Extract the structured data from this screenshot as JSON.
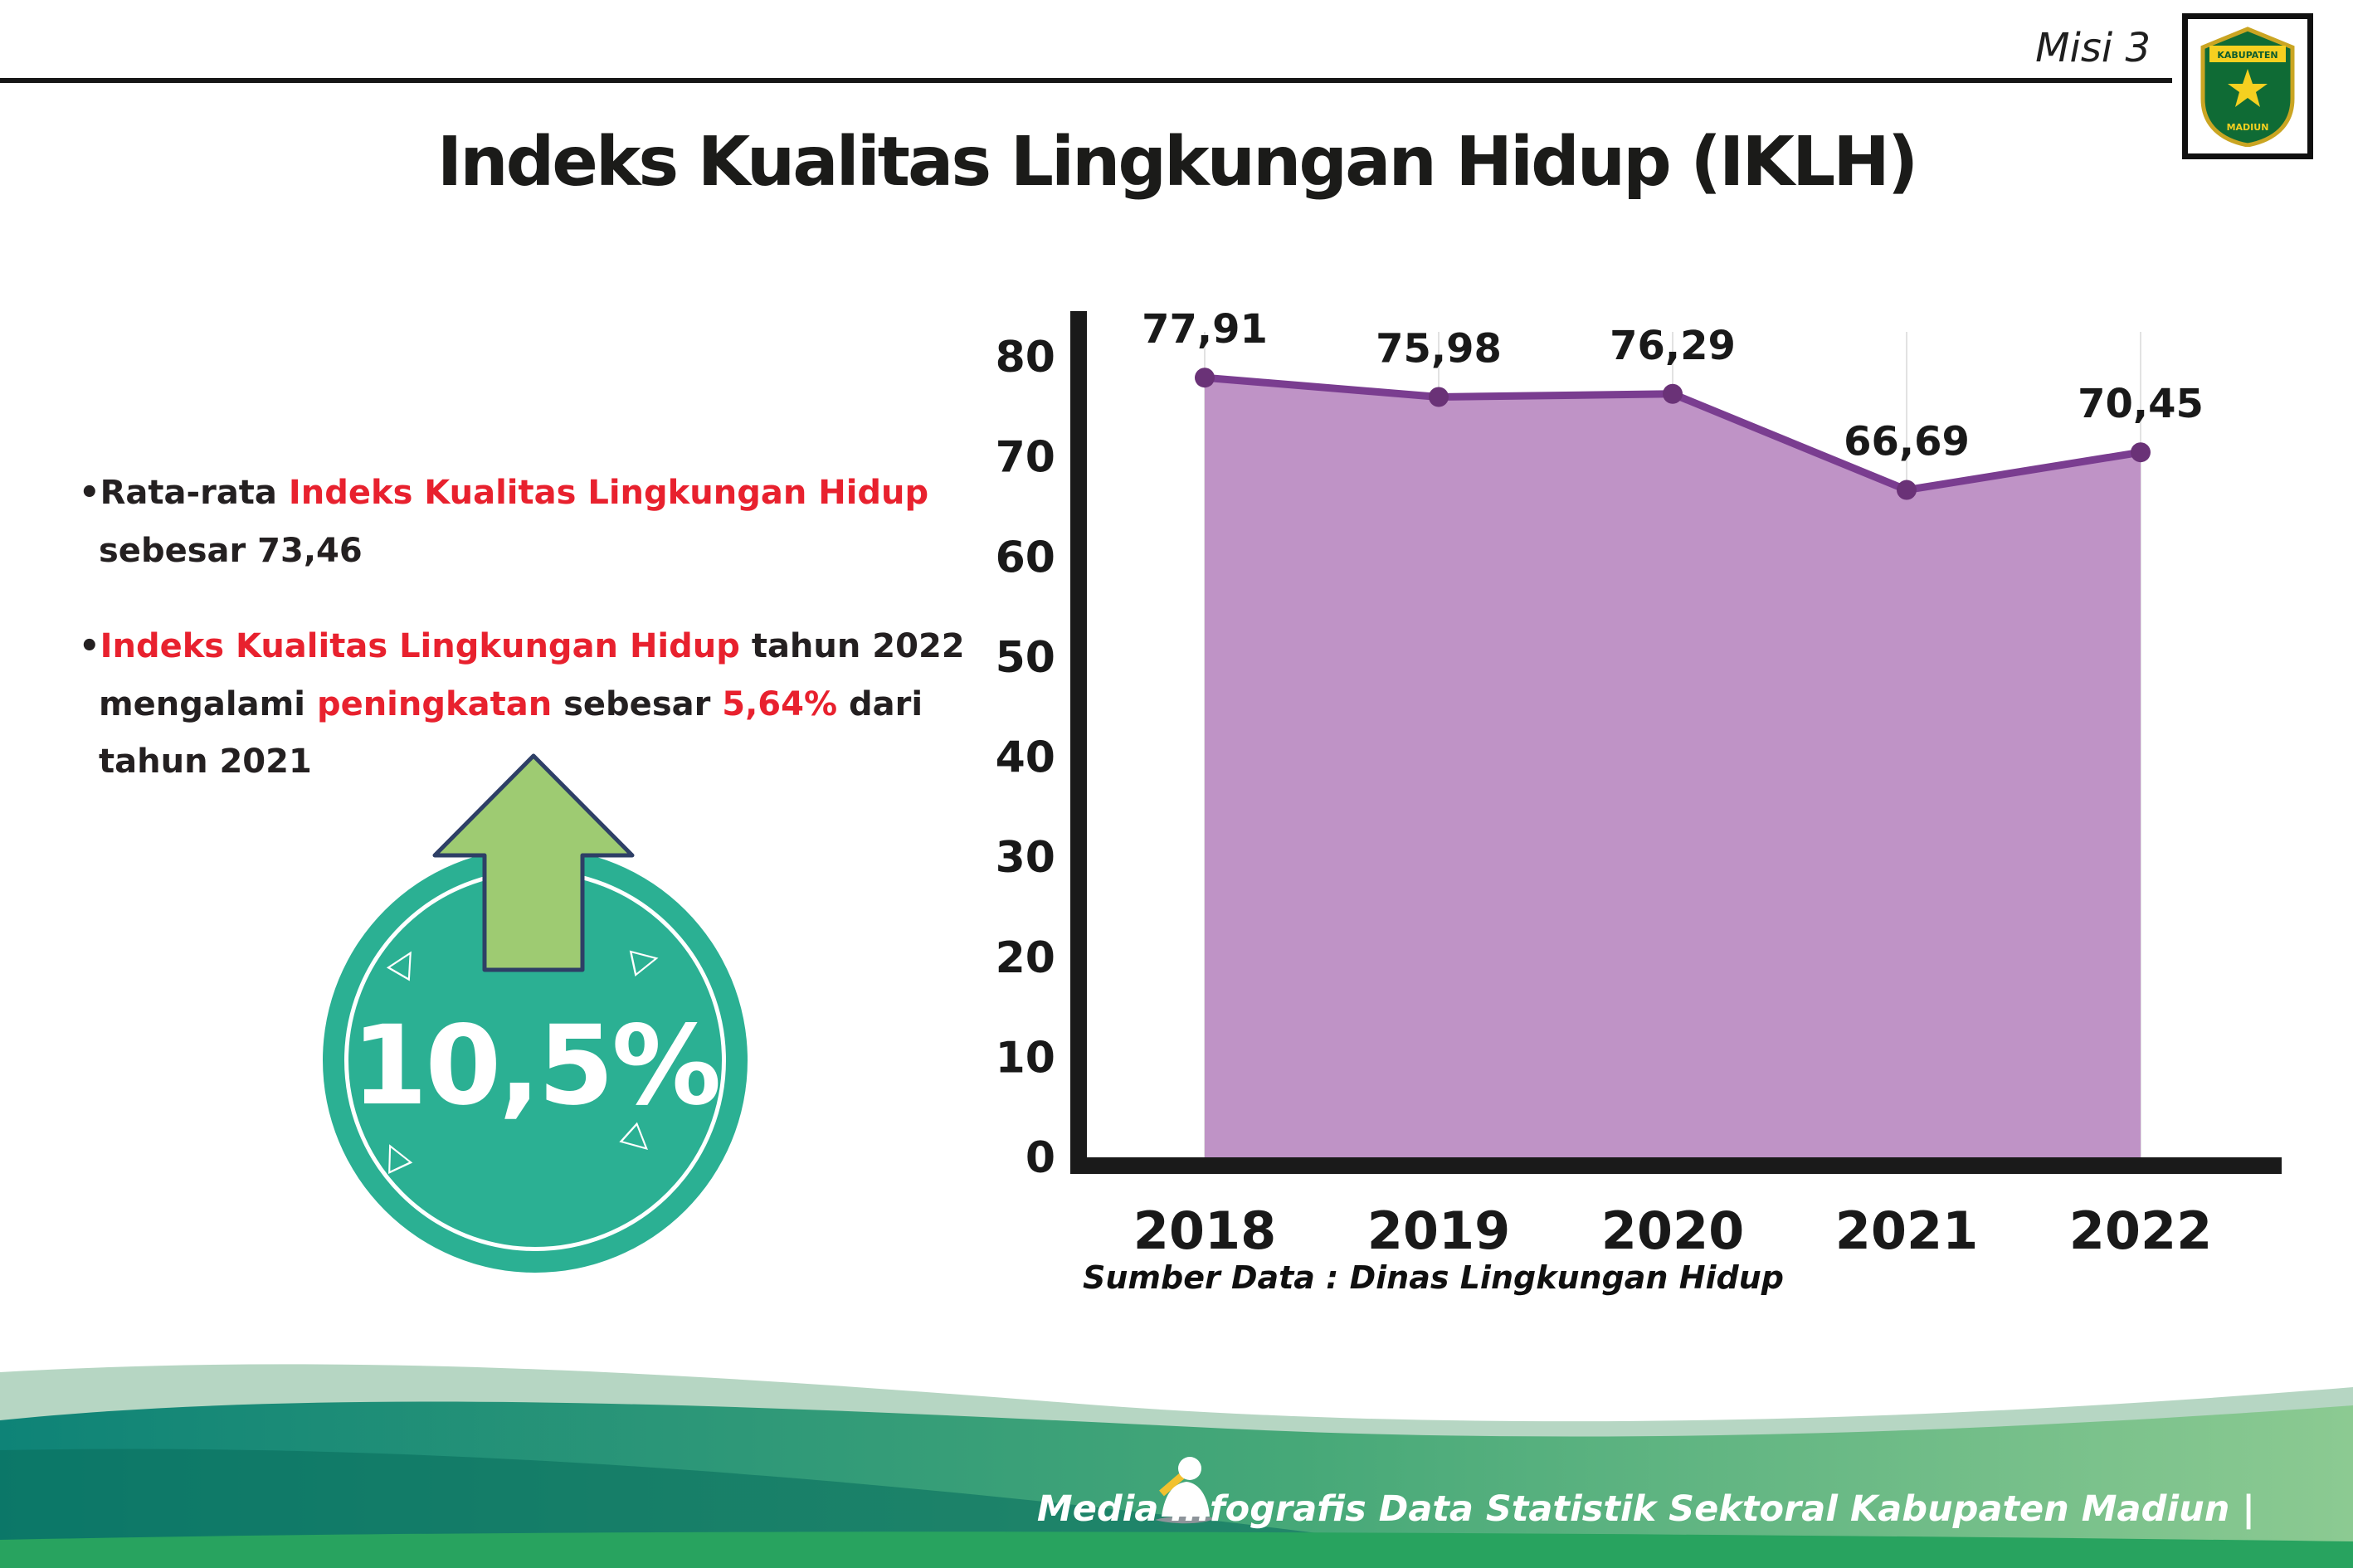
{
  "header": {
    "misi": "Misi 3",
    "title": "Indeks Kualitas Lingkungan Hidup (IKLH)",
    "logo": {
      "top_text": "KABUPATEN",
      "bottom_text": "MADIUN"
    }
  },
  "notes": {
    "bullet": "•",
    "b1_l1_black": "Rata-rata ",
    "b1_l1_red": "Indeks Kualitas Lingkungan Hidup",
    "b1_l2": "sebesar 73,46",
    "b2_l1_red": "Indeks Kualitas Lingkungan Hidup",
    "b2_l1_black": " tahun 2022",
    "b2_l2_black1": "mengalami ",
    "b2_l2_red1": "peningkatan",
    "b2_l2_black2": " sebesar ",
    "b2_l2_red2": "5,64%",
    "b2_l2_black3": " dari",
    "b2_l3": "tahun 2021"
  },
  "badge": {
    "value": "10,5%",
    "accent": "#2bb093",
    "arrow_color": "#9ecb72"
  },
  "chart_data": {
    "type": "area",
    "categories": [
      "2018",
      "2019",
      "2020",
      "2021",
      "2022"
    ],
    "values": [
      77.91,
      75.98,
      76.29,
      66.69,
      70.45
    ],
    "value_labels": [
      "77,91",
      "75,98",
      "76,29",
      "66,69",
      "70,45"
    ],
    "title": "",
    "xlabel": "",
    "ylabel": "",
    "ylim": [
      0,
      80
    ],
    "yticks": [
      0,
      10,
      20,
      30,
      40,
      50,
      60,
      70,
      80
    ],
    "grid": "vertical-light",
    "legend": "none",
    "area_color": "#bf93c6",
    "line_color": "#7a3d90",
    "point_color": "#6a3277"
  },
  "source_note": "Sumber Data : Dinas Lingkungan Hidup",
  "footer": {
    "text": "Media Infografis Data Statistik Sektoral Kabupaten Madiun |"
  }
}
